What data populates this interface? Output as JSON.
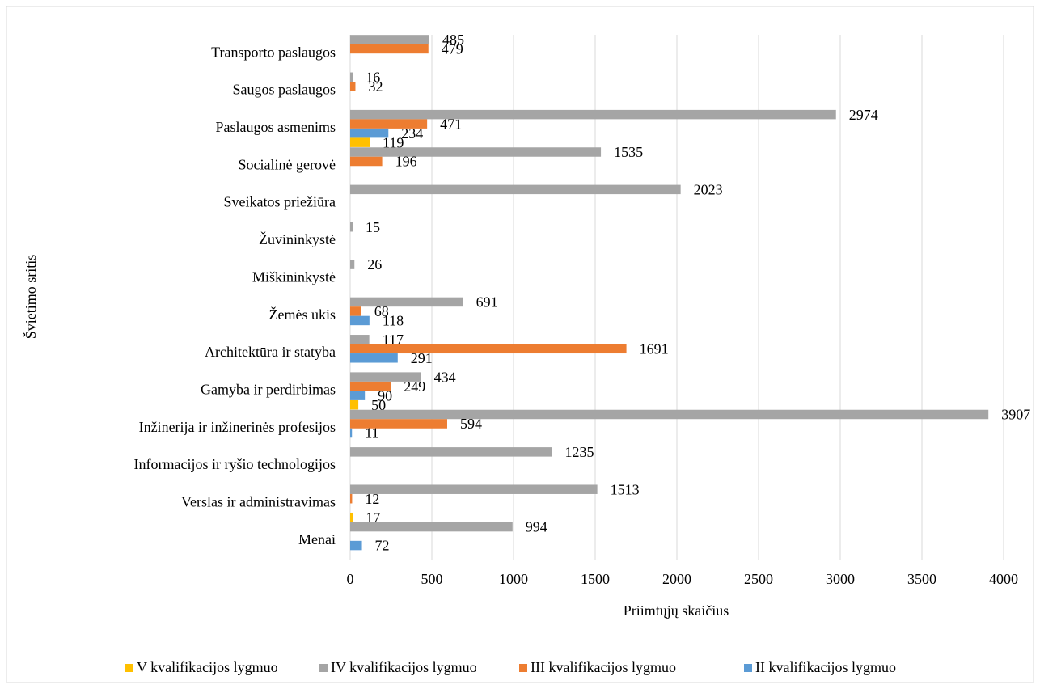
{
  "chart_data": {
    "type": "hbar",
    "xlabel": "Priimtųjų skaičius",
    "ylabel": "Švietimo sritis",
    "categories": [
      "Transporto paslaugos",
      "Saugos paslaugos",
      "Paslaugos asmenims",
      "Socialinė gerovė",
      "Sveikatos priežiūra",
      "Žuvininkystė",
      "Miškininkystė",
      "Žemės ūkis",
      "Architektūra ir statyba",
      "Gamyba ir perdirbimas",
      "Inžinerija ir inžinerinės profesijos",
      "Informacijos ir ryšio technologijos",
      "Verslas ir administravimas",
      "Menai"
    ],
    "series": [
      {
        "name": "V kvalifikacijos lygmuo",
        "color": "#ffc000",
        "values": [
          null,
          null,
          119,
          null,
          null,
          null,
          null,
          null,
          null,
          50,
          null,
          null,
          17,
          null
        ]
      },
      {
        "name": "IV kvalifikacijos lygmuo",
        "color": "#a5a5a5",
        "values": [
          485,
          16,
          2974,
          1535,
          2023,
          15,
          26,
          691,
          117,
          434,
          3907,
          1235,
          1513,
          994
        ]
      },
      {
        "name": "III kvalifikacijos lygmuo",
        "color": "#ed7d31",
        "values": [
          479,
          32,
          471,
          196,
          null,
          null,
          null,
          68,
          1691,
          249,
          594,
          null,
          12,
          null
        ]
      },
      {
        "name": "II kvalifikacijos lygmuo",
        "color": "#5b9bd5",
        "values": [
          null,
          null,
          234,
          null,
          null,
          null,
          null,
          118,
          291,
          90,
          11,
          null,
          null,
          72
        ]
      }
    ],
    "xlim": [
      0,
      4000
    ],
    "xticks": [
      0,
      500,
      1000,
      1500,
      2000,
      2500,
      3000,
      3500,
      4000
    ],
    "grid": true,
    "legend": "bottom"
  }
}
